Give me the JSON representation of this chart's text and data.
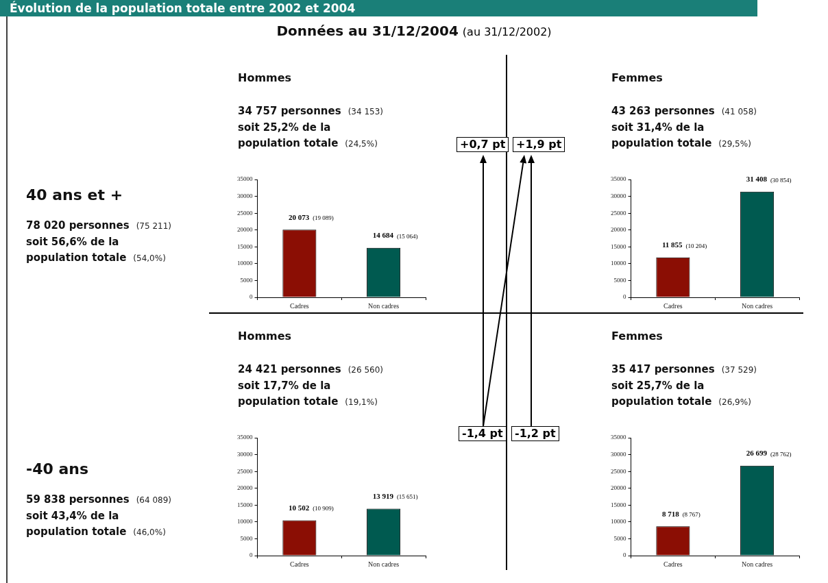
{
  "chart_data": [
    {
      "type": "other",
      "title": "Évolution de la population totale entre 2002 et 2004",
      "subtitle": "Données au 31/12/2004 (au 31/12/2002)",
      "annotations": [
        "40 ans et +",
        "78 020 personnes (75 211)",
        "soit 56,6% de la",
        "population totale (54,0%)",
        "-40 ans",
        "59 838 personnes (64 089)",
        "soit 43,4% de la",
        "population totale (46,0%)",
        "+0,7 pt",
        "+1,9 pt",
        "-1,4 pt",
        "-1,2 pt"
      ]
    },
    {
      "type": "bar",
      "title": "Hommes",
      "annotations": [
        "34 757 personnes (34 153)",
        "soit 25,2% de la",
        "population totale (24,5%)"
      ],
      "categories": [
        "Cadres",
        "Non cadres"
      ],
      "values": [
        20073,
        14684
      ],
      "colors": [
        "#8b0e04",
        "#005a50"
      ],
      "value_labels": [
        "20 073 (19 089)",
        "14 684 (15 064)"
      ],
      "ylim": [
        0,
        35000
      ],
      "yticks": [
        0,
        5000,
        10000,
        15000,
        20000,
        25000,
        30000,
        35000
      ],
      "grid": false,
      "legend": false
    },
    {
      "type": "bar",
      "title": "Femmes",
      "annotations": [
        "43 263 personnes (41 058)",
        "soit 31,4% de la",
        "population totale (29,5%)"
      ],
      "categories": [
        "Cadres",
        "Non cadres"
      ],
      "values": [
        11855,
        31408
      ],
      "colors": [
        "#8b0e04",
        "#005a50"
      ],
      "value_labels": [
        "11 855 (10 204)",
        "31 408 (30 854)"
      ],
      "ylim": [
        0,
        35000
      ],
      "yticks": [
        0,
        5000,
        10000,
        15000,
        20000,
        25000,
        30000,
        35000
      ],
      "grid": false,
      "legend": false
    },
    {
      "type": "bar",
      "title": "Hommes",
      "annotations": [
        "24 421 personnes (26 560)",
        "soit 17,7% de la",
        "population totale (19,1%)"
      ],
      "categories": [
        "Cadres",
        "Non cadres"
      ],
      "values": [
        10502,
        13919
      ],
      "colors": [
        "#8b0e04",
        "#005a50"
      ],
      "value_labels": [
        "10 502 (10 909)",
        "13 919 (15 651)"
      ],
      "ylim": [
        0,
        35000
      ],
      "yticks": [
        0,
        5000,
        10000,
        15000,
        20000,
        25000,
        30000,
        35000
      ],
      "grid": false,
      "legend": false
    },
    {
      "type": "bar",
      "title": "Femmes",
      "annotations": [
        "35 417 personnes (37 529)",
        "soit 25,7% de la",
        "population totale (26,9%)"
      ],
      "categories": [
        "Cadres",
        "Non cadres"
      ],
      "values": [
        8718,
        26699
      ],
      "colors": [
        "#8b0e04",
        "#005a50"
      ],
      "value_labels": [
        "8 718 (8 767)",
        "26 699 (28 762)"
      ],
      "ylim": [
        0,
        35000
      ],
      "yticks": [
        0,
        5000,
        10000,
        15000,
        20000,
        25000,
        30000,
        35000
      ],
      "grid": false,
      "legend": false
    }
  ]
}
